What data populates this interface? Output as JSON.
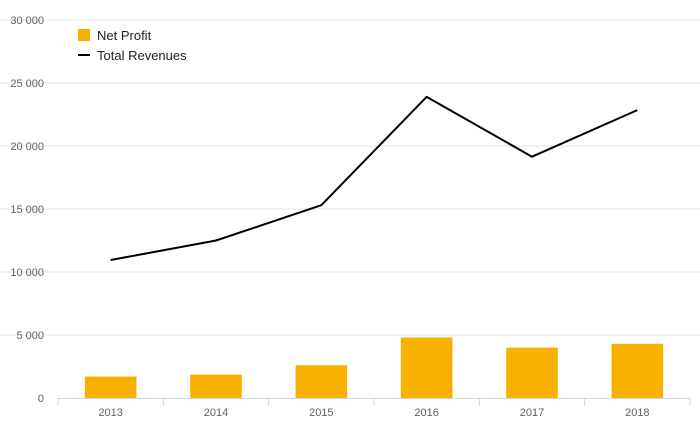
{
  "chart_data": {
    "type": "bar",
    "categories": [
      "2013",
      "2014",
      "2015",
      "2016",
      "2017",
      "2018"
    ],
    "series": [
      {
        "name": "Net Profit",
        "kind": "bar",
        "color": "#f9b100",
        "values": [
          1700,
          1850,
          2600,
          4800,
          4000,
          4300
        ]
      },
      {
        "name": "Total Revenues",
        "kind": "line",
        "color": "#000000",
        "values": [
          10950,
          12500,
          15300,
          23900,
          19150,
          22850
        ]
      }
    ],
    "ylim": [
      0,
      30000
    ],
    "y_ticks": [
      0,
      5000,
      10000,
      15000,
      20000,
      25000,
      30000
    ],
    "y_tick_labels": [
      "0",
      "5 000",
      "10 000",
      "15 000",
      "20 000",
      "25 000",
      "30 000"
    ],
    "grid": true,
    "legend": {
      "placement": "top-left",
      "entries": [
        "Net Profit",
        "Total Revenues"
      ]
    },
    "title": "",
    "xlabel": "",
    "ylabel": ""
  }
}
